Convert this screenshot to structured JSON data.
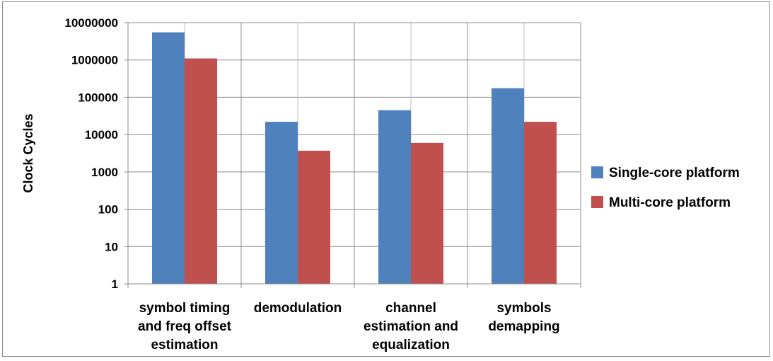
{
  "chart_data": {
    "type": "bar",
    "ylabel": "Clock Cycles",
    "xlabel": "",
    "yscale": "log",
    "ylim": [
      1,
      10000000
    ],
    "yticks": [
      "1",
      "10",
      "100",
      "1000",
      "10000",
      "100000",
      "1000000",
      "10000000"
    ],
    "categories": [
      [
        "symbol timing",
        "and freq offset",
        "estimation"
      ],
      [
        "demodulation"
      ],
      [
        "channel",
        "estimation and",
        "equalization"
      ],
      [
        "symbols",
        "demapping"
      ]
    ],
    "series": [
      {
        "name": "Single-core platform",
        "color": "#4f81bd",
        "values": [
          5500000,
          22000,
          45000,
          175000
        ]
      },
      {
        "name": "Multi-core platform",
        "color": "#c0504d",
        "values": [
          1100000,
          3700,
          6000,
          22000
        ]
      }
    ],
    "grid": true,
    "legend": "right"
  }
}
